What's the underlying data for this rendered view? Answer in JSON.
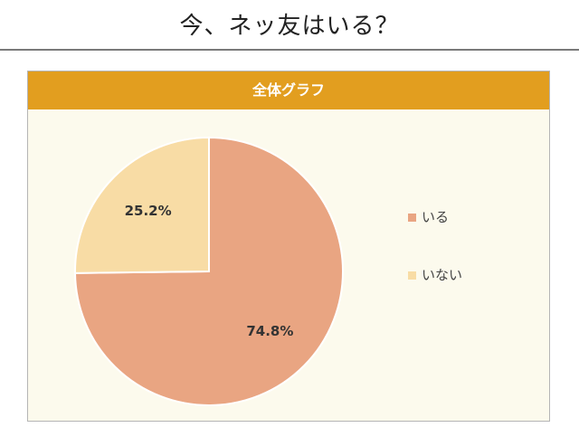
{
  "page_title": "今、ネッ友はいる？",
  "panel_title": "全体グラフ",
  "chart_data": {
    "type": "pie",
    "categories": [
      "いる",
      "いない"
    ],
    "values": [
      74.8,
      25.2
    ],
    "labels": [
      "74.8%",
      "25.2%"
    ],
    "colors": [
      "#e9a582",
      "#f8dca5"
    ],
    "legend_position": "right"
  }
}
